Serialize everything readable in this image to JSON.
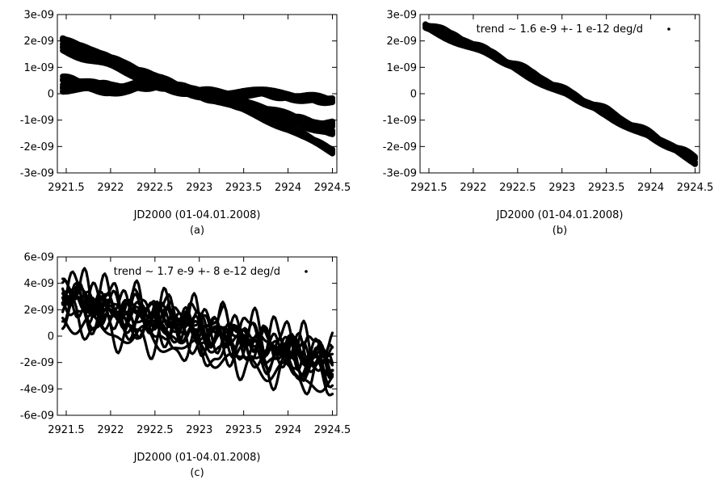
{
  "chart_data": [
    {
      "type": "scatter",
      "panel_label": "(a)",
      "xlabel": "JD2000 (01-04.01.2008)",
      "ylabel": "",
      "xlim": [
        2921.4,
        2924.55
      ],
      "ylim": [
        -3e-09,
        3e-09
      ],
      "xticks": [
        "2921.5",
        "2922",
        "2922.5",
        "2923",
        "2923.5",
        "2924",
        "2924.5"
      ],
      "yticks": [
        "3e-09",
        "2e-09",
        "1e-09",
        "0",
        "-1e-09",
        "-2e-09",
        "-3e-09"
      ],
      "legend": null,
      "grid": false,
      "series": [
        {
          "x": [
            2921.46,
            2922.0,
            2922.5,
            2923.0,
            2923.5,
            2924.0,
            2924.5
          ],
          "y": [
            2e-09,
            1.3e-09,
            6e-10,
            0.0,
            -6e-10,
            -1.3e-09,
            -2.2e-09
          ]
        },
        {
          "x": [
            2921.46,
            2922.0,
            2922.5,
            2923.0,
            2923.5,
            2924.0,
            2924.5
          ],
          "y": [
            1.7e-09,
            1.1e-09,
            5e-10,
            0.0,
            -4e-10,
            -9e-10,
            -1.5e-09
          ]
        },
        {
          "x": [
            2921.46,
            2922.0,
            2922.5,
            2923.0,
            2923.5,
            2924.0,
            2924.5
          ],
          "y": [
            5e-10,
            2e-10,
            4e-10,
            0.0,
            -5e-10,
            -1e-09,
            -1.2e-09
          ]
        },
        {
          "x": [
            2921.46,
            2922.0,
            2922.5,
            2923.0,
            2923.5,
            2924.0,
            2924.5
          ],
          "y": [
            2e-10,
            1e-10,
            3e-10,
            0.0,
            0.0,
            -1e-10,
            -3e-10
          ]
        }
      ]
    },
    {
      "type": "scatter",
      "panel_label": "(b)",
      "xlabel": "JD2000 (01-04.01.2008)",
      "ylabel": "",
      "xlim": [
        2921.4,
        2924.55
      ],
      "ylim": [
        -3e-09,
        3e-09
      ],
      "xticks": [
        "2921.5",
        "2922",
        "2922.5",
        "2923",
        "2923.5",
        "2924",
        "2924.5"
      ],
      "yticks": [
        "3e-09",
        "2e-09",
        "1e-09",
        "0",
        "-1e-09",
        "-2e-09",
        "-3e-09"
      ],
      "legend": {
        "label": "trend ~ 1.6 e-9 +- 1 e-12 deg/d",
        "position": "top-right"
      },
      "grid": false,
      "series": [
        {
          "name": "trend ~ 1.6 e-9 +- 1 e-12 deg/d",
          "x": [
            2921.46,
            2922.0,
            2922.5,
            2923.0,
            2923.5,
            2924.0,
            2924.5
          ],
          "y": [
            2.6e-09,
            1.8e-09,
            1e-09,
            1e-10,
            -7e-10,
            -1.6e-09,
            -2.5e-09
          ]
        }
      ]
    },
    {
      "type": "scatter",
      "panel_label": "(c)",
      "xlabel": "JD2000 (01-04.01.2008)",
      "ylabel": "",
      "xlim": [
        2921.4,
        2924.55
      ],
      "ylim": [
        -6e-09,
        6e-09
      ],
      "xticks": [
        "2921.5",
        "2922",
        "2922.5",
        "2923",
        "2923.5",
        "2924",
        "2924.5"
      ],
      "yticks": [
        "6e-09",
        "4e-09",
        "2e-09",
        "0",
        "-2e-09",
        "-4e-09",
        "-6e-09"
      ],
      "legend": {
        "label": "trend ~ 1.7 e-9 +- 8 e-12 deg/d",
        "position": "top-right"
      },
      "grid": false,
      "series": [
        {
          "name": "trend ~ 1.7 e-9 +- 8 e-12 deg/d",
          "x": [
            2921.46,
            2922.0,
            2922.5,
            2923.0,
            2923.5,
            2924.0,
            2924.5
          ],
          "y": [
            2.5e-09,
            1.5e-09,
            8e-10,
            0.0,
            -8e-10,
            -1.7e-09,
            -2.6e-09
          ]
        }
      ]
    }
  ]
}
